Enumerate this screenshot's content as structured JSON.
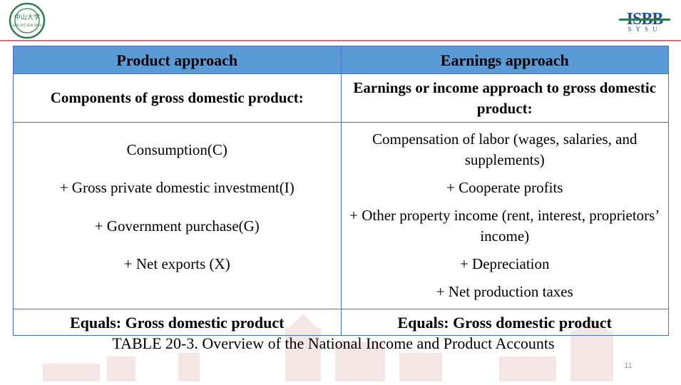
{
  "header": {
    "left_logo_text": "中山大学 SUN YAT-SEN UNIVERSITY",
    "right_logo_text": "ISBB",
    "right_logo_sub": "S Y S U"
  },
  "table": {
    "headers": [
      "Product approach",
      "Earnings approach"
    ],
    "subheaders": [
      "Components of gross domestic product:",
      "Earnings or income approach to gross domestic product:"
    ],
    "left_items": [
      "Consumption(C)",
      "+ Gross private domestic investment(I)",
      "+ Government purchase(G)",
      "+ Net exports (X)"
    ],
    "right_items": [
      "Compensation of labor (wages, salaries, and supplements)",
      "+ Cooperate profits",
      "+ Other property income (rent, interest, proprietors’ income)",
      "+ Depreciation",
      "+ Net production taxes"
    ],
    "totals": [
      "Equals: Gross domestic product",
      "Equals: Gross domestic product"
    ]
  },
  "caption": "TABLE 20-3. Overview of the National Income and Product Accounts",
  "page_number": "11",
  "colors": {
    "header_bg": "#5b9bd5",
    "border": "#4472c4",
    "accent_line": "#c9777a",
    "logo_green": "#2e7d4f",
    "logo_blue": "#1f4e9a"
  }
}
